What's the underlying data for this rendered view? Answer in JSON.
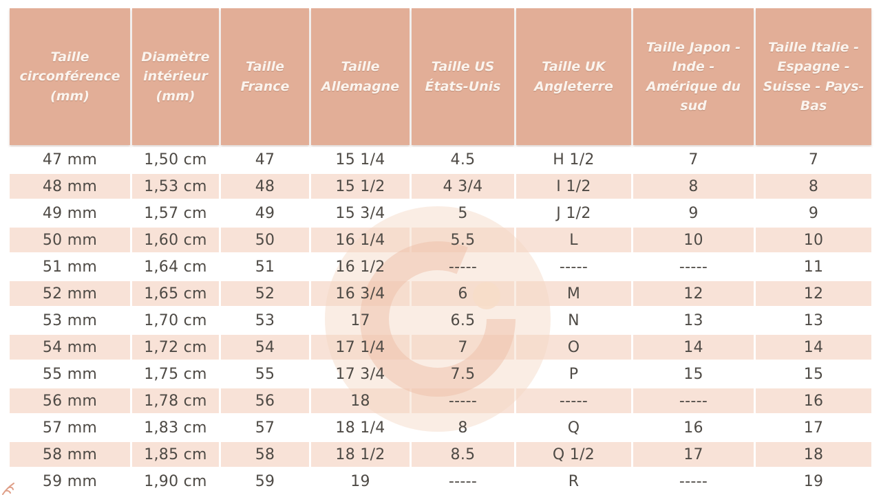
{
  "colors": {
    "page_bg": "#ffffff",
    "header_bg": "#e2ae97",
    "header_text": "#fbf4ee",
    "row_bg": "#ffffff",
    "row_alt_bg": "#f8e2d7",
    "body_text": "#4e4a45",
    "watermark_fill": "#f5d6c3",
    "watermark_ring": "#eec0a7",
    "watermark_dot": "#f7ddc9",
    "sprig": "#df9f88"
  },
  "watermark": {
    "icon": "brand-g-watermark",
    "letter": "G"
  },
  "chart_data": {
    "type": "table",
    "columns": [
      "Taille circonférence (mm)",
      "Diamètre intérieur (mm)",
      "Taille France",
      "Taille Allemagne",
      "Taille US États-Unis",
      "Taille UK Angleterre",
      "Taille Japon - Inde - Amérique du sud",
      "Taille Italie - Espagne - Suisse - Pays-Bas"
    ],
    "rows": [
      [
        "47 mm",
        "1,50 cm",
        "47",
        "15 1/4",
        "4.5",
        "H 1/2",
        "7",
        "7"
      ],
      [
        "48 mm",
        "1,53 cm",
        "48",
        "15 1/2",
        "4 3/4",
        "I 1/2",
        "8",
        "8"
      ],
      [
        "49 mm",
        "1,57 cm",
        "49",
        "15 3/4",
        "5",
        "J 1/2",
        "9",
        "9"
      ],
      [
        "50 mm",
        "1,60 cm",
        "50",
        "16 1/4",
        "5.5",
        "L",
        "10",
        "10"
      ],
      [
        "51 mm",
        "1,64 cm",
        "51",
        "16 1/2",
        "-----",
        "-----",
        "-----",
        "11"
      ],
      [
        "52 mm",
        "1,65 cm",
        "52",
        "16 3/4",
        "6",
        "M",
        "12",
        "12"
      ],
      [
        "53 mm",
        "1,70 cm",
        "53",
        "17",
        "6.5",
        "N",
        "13",
        "13"
      ],
      [
        "54 mm",
        "1,72 cm",
        "54",
        "17 1/4",
        "7",
        "O",
        "14",
        "14"
      ],
      [
        "55 mm",
        "1,75 cm",
        "55",
        "17 3/4",
        "7.5",
        "P",
        "15",
        "15"
      ],
      [
        "56 mm",
        "1,78 cm",
        "56",
        "18",
        "-----",
        "-----",
        "-----",
        "16"
      ],
      [
        "57 mm",
        "1,83 cm",
        "57",
        "18 1/4",
        "8",
        "Q",
        "16",
        "17"
      ],
      [
        "58 mm",
        "1,85 cm",
        "58",
        "18 1/2",
        "8.5",
        "Q 1/2",
        "17",
        "18"
      ],
      [
        "59 mm",
        "1,90 cm",
        "59",
        "19",
        "-----",
        "R",
        "-----",
        "19"
      ]
    ]
  }
}
